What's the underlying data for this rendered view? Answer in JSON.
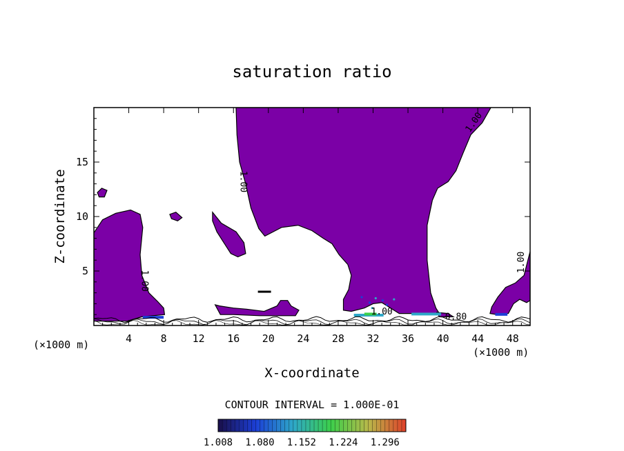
{
  "chart_data": {
    "type": "contour",
    "title": "saturation ratio",
    "xlabel": "X-coordinate",
    "ylabel": "Z-coordinate",
    "x_unit_left": "(×1000 m)",
    "x_unit_right": "(×1000 m)",
    "xlim": [
      0,
      50
    ],
    "ylim": [
      0,
      20
    ],
    "x_ticks": [
      4,
      8,
      12,
      16,
      20,
      24,
      28,
      32,
      36,
      40,
      44,
      48
    ],
    "y_ticks": [
      5,
      10,
      15
    ],
    "contour_interval_label": "CONTOUR INTERVAL = 1.000E-01",
    "contour_labels": [
      {
        "text": "1.00",
        "x": 16.8,
        "y": 13.2
      },
      {
        "text": "1.00",
        "x": 43.8,
        "y": 18.5
      },
      {
        "text": "1.00",
        "x": 49.3,
        "y": 5.8
      },
      {
        "text": "1.00",
        "x": 5.5,
        "y": 4.1
      },
      {
        "text": "1.00",
        "x": 33.0,
        "y": 1.0
      },
      {
        "text": "0.80",
        "x": 41.5,
        "y": 0.55
      }
    ],
    "fill_color": "#7b00a6",
    "colorbar": {
      "ticks": [
        "1.008",
        "1.080",
        "1.152",
        "1.224",
        "1.296"
      ],
      "min": 1.008,
      "max": 1.332,
      "stops": [
        "#1a0f4a",
        "#1c3fd6",
        "#2ea8c8",
        "#3ccf4b",
        "#b8b84a",
        "#e0402a"
      ]
    },
    "regions": [
      {
        "name": "large-upper-region",
        "points": [
          [
            16.3,
            20
          ],
          [
            45.5,
            20
          ],
          [
            44.5,
            18.6
          ],
          [
            43.2,
            17.5
          ],
          [
            42.3,
            15.8
          ],
          [
            41.5,
            14.2
          ],
          [
            40.6,
            13.2
          ],
          [
            39.4,
            12.6
          ],
          [
            38.8,
            11.5
          ],
          [
            38.2,
            9.2
          ],
          [
            38.2,
            6
          ],
          [
            38.6,
            3
          ],
          [
            39.2,
            1.6
          ],
          [
            39.6,
            1.1
          ],
          [
            35,
            1.1
          ],
          [
            34,
            1.6
          ],
          [
            33,
            2.1
          ],
          [
            32,
            2
          ],
          [
            31,
            1.6
          ],
          [
            29.5,
            1.3
          ],
          [
            28.6,
            1.4
          ],
          [
            28.6,
            2.4
          ],
          [
            29.2,
            3.3
          ],
          [
            29.5,
            4.6
          ],
          [
            29.1,
            5.6
          ],
          [
            28.1,
            6.5
          ],
          [
            27.3,
            7.5
          ],
          [
            26.3,
            8
          ],
          [
            25,
            8.7
          ],
          [
            23.4,
            9.2
          ],
          [
            21.5,
            9
          ],
          [
            19.6,
            8.2
          ],
          [
            18.9,
            8.9
          ],
          [
            18,
            10.8
          ],
          [
            17.4,
            13
          ],
          [
            16.7,
            15
          ],
          [
            16.4,
            17.5
          ]
        ]
      },
      {
        "name": "left-edge-region",
        "points": [
          [
            0,
            8.5
          ],
          [
            1,
            9.7
          ],
          [
            2.5,
            10.3
          ],
          [
            4.2,
            10.6
          ],
          [
            5.3,
            10.2
          ],
          [
            5.6,
            9
          ],
          [
            5.3,
            6.5
          ],
          [
            5.5,
            4.6
          ],
          [
            6.3,
            3
          ],
          [
            7.3,
            2.2
          ],
          [
            8,
            1.6
          ],
          [
            8.1,
            1.0
          ],
          [
            5.5,
            0.8
          ],
          [
            3.8,
            0.4
          ],
          [
            0,
            0.4
          ]
        ]
      },
      {
        "name": "mid-left-blob",
        "points": [
          [
            13.6,
            10.4
          ],
          [
            14.6,
            9.4
          ],
          [
            16.3,
            8.6
          ],
          [
            17.2,
            7.6
          ],
          [
            17.4,
            6.6
          ],
          [
            16.5,
            6.3
          ],
          [
            15.7,
            6.6
          ],
          [
            14.9,
            7.6
          ],
          [
            14.1,
            8.6
          ],
          [
            13.6,
            9.6
          ]
        ]
      },
      {
        "name": "small-blob-a",
        "points": [
          [
            0.4,
            12.2
          ],
          [
            0.9,
            12.6
          ],
          [
            1.5,
            12.4
          ],
          [
            1.2,
            11.8
          ],
          [
            0.6,
            11.8
          ]
        ]
      },
      {
        "name": "small-blob-b",
        "points": [
          [
            8.7,
            10.2
          ],
          [
            9.4,
            10.4
          ],
          [
            10.1,
            9.9
          ],
          [
            9.6,
            9.6
          ],
          [
            8.9,
            9.8
          ]
        ]
      },
      {
        "name": "right-edge-region",
        "points": [
          [
            50,
            6.8
          ],
          [
            49.3,
            4.6
          ],
          [
            48.3,
            3.9
          ],
          [
            47.2,
            3.5
          ],
          [
            46.3,
            2.6
          ],
          [
            45.6,
            1.7
          ],
          [
            45.4,
            1.1
          ],
          [
            46.2,
            1.0
          ],
          [
            47.5,
            1.1
          ],
          [
            48.1,
            2.0
          ],
          [
            48.8,
            2.4
          ],
          [
            49.6,
            2.1
          ],
          [
            50,
            2.3
          ]
        ]
      },
      {
        "name": "low-strip-a",
        "points": [
          [
            13.9,
            1.9
          ],
          [
            14.4,
            1.8
          ],
          [
            16,
            1.6
          ],
          [
            17.5,
            1.5
          ],
          [
            19.5,
            1.3
          ],
          [
            21,
            1.8
          ],
          [
            21.4,
            2.3
          ],
          [
            22.2,
            2.3
          ],
          [
            22.6,
            1.8
          ],
          [
            23.5,
            1.4
          ],
          [
            23.1,
            0.9
          ],
          [
            21.5,
            0.9
          ],
          [
            19,
            0.9
          ],
          [
            16,
            1.0
          ],
          [
            14.5,
            1.0
          ]
        ]
      },
      {
        "name": "low-strip-b",
        "points": [
          [
            39.3,
            1.2
          ],
          [
            40.6,
            1.1
          ],
          [
            41.2,
            0.8
          ],
          [
            39.6,
            0.8
          ]
        ]
      }
    ]
  }
}
